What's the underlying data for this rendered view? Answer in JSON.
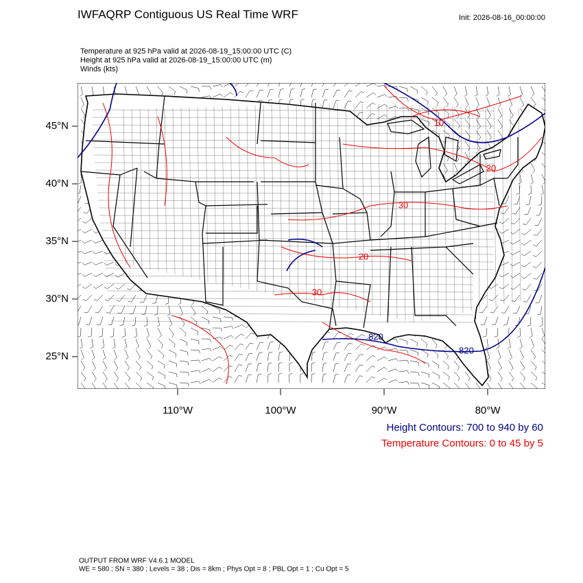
{
  "header": {
    "title": "IWFAQRP Contiguous US Real Time WRF",
    "init": "Init: 2026-08-16_00:00:00",
    "fields": [
      "Temperature at 925 hPa valid at 2026-08-19_15:00:00 UTC   (C)",
      "Height at 925 hPa valid at 2026-08-19_15:00:00 UTC   (m)",
      "Winds   (kts)"
    ]
  },
  "map": {
    "lat_labels": [
      "45°N",
      "40°N",
      "35°N",
      "30°N",
      "25°N"
    ],
    "lon_labels": [
      "110°W",
      "100°W",
      "90°W",
      "80°W"
    ],
    "contour_labels": [
      "10",
      "20",
      "30",
      "20",
      "30",
      "820",
      "820"
    ]
  },
  "legend": {
    "height": "Height Contours: 700 to 940 by 60",
    "temperature": "Temperature Contours: 0 to 45 by 5"
  },
  "footer": [
    "OUTPUT FROM WRF V4.6.1 MODEL",
    "WE = 580 ; SN = 380 ; Levels = 38 ; Dis = 8km ; Phys Opt = 8 ; PBL Opt = 1 ; Cu Opt = 5"
  ]
}
